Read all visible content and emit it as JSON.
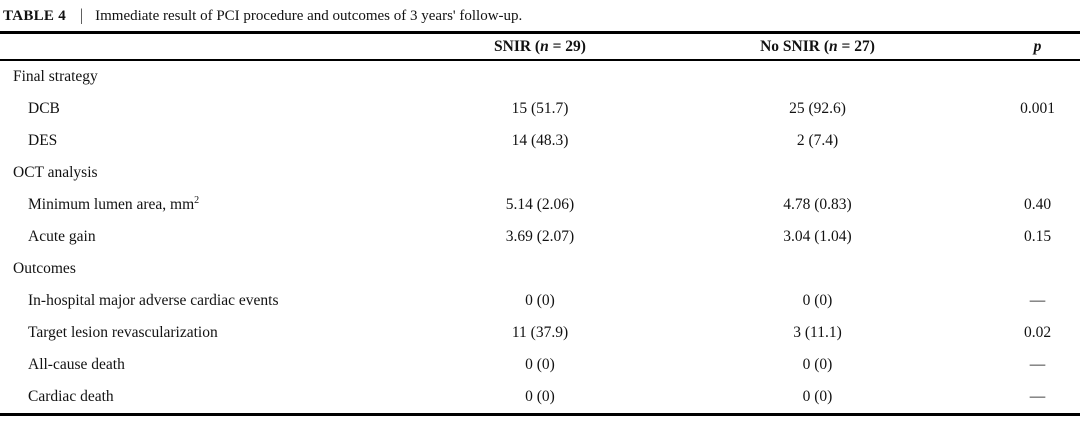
{
  "caption": {
    "label": "TABLE 4",
    "separator": "|",
    "text": "Immediate result of PCI procedure and outcomes of 3 years' follow-up."
  },
  "header": {
    "snir": {
      "pre": "SNIR (",
      "n": "n",
      "post": " = 29)"
    },
    "no_snir": {
      "pre": "No SNIR (",
      "n": "n",
      "post": " = 27)"
    },
    "p": "p"
  },
  "rows": [
    {
      "label": "Final strategy",
      "snir": "",
      "no_snir": "",
      "p": ""
    },
    {
      "label": "DCB",
      "snir": "15 (51.7)",
      "no_snir": "25 (92.6)",
      "p": "0.001"
    },
    {
      "label": "DES",
      "snir": "14 (48.3)",
      "no_snir": "2 (7.4)",
      "p": ""
    },
    {
      "label": "OCT analysis",
      "snir": "",
      "no_snir": "",
      "p": ""
    },
    {
      "label": "Minimum lumen area, mm",
      "sup": "2",
      "snir": "5.14 (2.06)",
      "no_snir": "4.78 (0.83)",
      "p": "0.40"
    },
    {
      "label": "Acute gain",
      "snir": "3.69 (2.07)",
      "no_snir": "3.04 (1.04)",
      "p": "0.15"
    },
    {
      "label": "Outcomes",
      "snir": "",
      "no_snir": "",
      "p": ""
    },
    {
      "label": "In-hospital major adverse cardiac events",
      "snir": "0 (0)",
      "no_snir": "0 (0)",
      "p": "—"
    },
    {
      "label": "Target lesion revascularization",
      "snir": "11 (37.9)",
      "no_snir": "3 (11.1)",
      "p": "0.02"
    },
    {
      "label": "All-cause death",
      "snir": "0 (0)",
      "no_snir": "0 (0)",
      "p": "—"
    },
    {
      "label": "Cardiac death",
      "snir": "0 (0)",
      "no_snir": "0 (0)",
      "p": "—"
    }
  ],
  "colors": {
    "text": "#121212",
    "rule": "#000000",
    "background": "#ffffff"
  }
}
